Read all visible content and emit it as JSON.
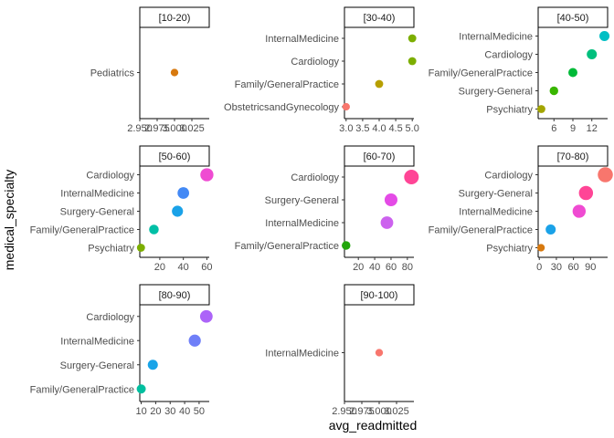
{
  "chart_data": {
    "type": "scatter",
    "xlabel": "avg_readmitted",
    "ylabel": "medical_specialty",
    "grid": false,
    "legend": "none",
    "panels": [
      {
        "label": "[10-20)",
        "xlim": [
          2.95,
          3.05
        ],
        "xticks": [
          2.95,
          2.975,
          3.0,
          3.025
        ],
        "xtick_labels": [
          "2.950",
          "2.975",
          "3.000",
          "3.025"
        ],
        "categories": [
          "Pediatrics"
        ],
        "points": [
          {
            "category": "Pediatrics",
            "value": 3.0,
            "color": "#D7790F",
            "size": 0.3
          }
        ]
      },
      {
        "label": "[30-40)",
        "xlim": [
          2.95,
          5.05
        ],
        "xticks": [
          3.0,
          3.5,
          4.0,
          4.5,
          5.0
        ],
        "xtick_labels": [
          "3.0",
          "3.5",
          "4.0",
          "4.5",
          "5.0"
        ],
        "categories": [
          "ObstetricsandGynecology",
          "Family/GeneralPractice",
          "Cardiology",
          "InternalMedicine"
        ],
        "points": [
          {
            "category": "ObstetricsandGynecology",
            "value": 3.0,
            "color": "#F8766D",
            "size": 0.3
          },
          {
            "category": "Family/GeneralPractice",
            "value": 4.0,
            "color": "#B79F00",
            "size": 0.35
          },
          {
            "category": "Cardiology",
            "value": 5.0,
            "color": "#7CAE00",
            "size": 0.35
          },
          {
            "category": "InternalMedicine",
            "value": 5.0,
            "color": "#7CAE00",
            "size": 0.35
          }
        ]
      },
      {
        "label": "[40-50)",
        "xlim": [
          3.5,
          14.5
        ],
        "xticks": [
          6,
          9,
          12
        ],
        "xtick_labels": [
          "6",
          "9",
          "12"
        ],
        "categories": [
          "Psychiatry",
          "Surgery-General",
          "Family/GeneralPractice",
          "Cardiology",
          "InternalMedicine"
        ],
        "points": [
          {
            "category": "Psychiatry",
            "value": 4.0,
            "color": "#A3A500",
            "size": 0.35
          },
          {
            "category": "Surgery-General",
            "value": 6.0,
            "color": "#39B600",
            "size": 0.4
          },
          {
            "category": "Family/GeneralPractice",
            "value": 9.0,
            "color": "#00BA38",
            "size": 0.45
          },
          {
            "category": "Cardiology",
            "value": 12.0,
            "color": "#00BF7D",
            "size": 0.55
          },
          {
            "category": "InternalMedicine",
            "value": 14.0,
            "color": "#00BFC4",
            "size": 0.55
          }
        ]
      },
      {
        "label": "[50-60)",
        "xlim": [
          3,
          62
        ],
        "xticks": [
          20,
          40,
          60
        ],
        "xtick_labels": [
          "20",
          "40",
          "60"
        ],
        "categories": [
          "Psychiatry",
          "Family/GeneralPractice",
          "Surgery-General",
          "InternalMedicine",
          "Cardiology"
        ],
        "points": [
          {
            "category": "Psychiatry",
            "value": 4,
            "color": "#7CAE00",
            "size": 0.35
          },
          {
            "category": "Family/GeneralPractice",
            "value": 15,
            "color": "#00BFA6",
            "size": 0.5
          },
          {
            "category": "Surgery-General",
            "value": 35,
            "color": "#1AA2E8",
            "size": 0.65
          },
          {
            "category": "InternalMedicine",
            "value": 40,
            "color": "#4389F5",
            "size": 0.7
          },
          {
            "category": "Cardiology",
            "value": 60,
            "color": "#EF4BD2",
            "size": 0.85
          }
        ]
      },
      {
        "label": "[60-70)",
        "xlim": [
          3,
          88
        ],
        "xticks": [
          20,
          40,
          60,
          80
        ],
        "xtick_labels": [
          "20",
          "40",
          "60",
          "80"
        ],
        "categories": [
          "Family/GeneralPractice",
          "InternalMedicine",
          "Surgery-General",
          "Cardiology"
        ],
        "points": [
          {
            "category": "Family/GeneralPractice",
            "value": 5,
            "color": "#22A60B",
            "size": 0.4
          },
          {
            "category": "InternalMedicine",
            "value": 55,
            "color": "#CC62EE",
            "size": 0.8
          },
          {
            "category": "Surgery-General",
            "value": 60,
            "color": "#E44BE6",
            "size": 0.82
          },
          {
            "category": "Cardiology",
            "value": 85,
            "color": "#FF4596",
            "size": 1.0
          }
        ]
      },
      {
        "label": "[70-80)",
        "xlim": [
          -2,
          120
        ],
        "xticks": [
          0,
          30,
          60,
          90
        ],
        "xtick_labels": [
          "0",
          "30",
          "60",
          "90"
        ],
        "categories": [
          "Psychiatry",
          "Family/GeneralPractice",
          "InternalMedicine",
          "Surgery-General",
          "Cardiology"
        ],
        "points": [
          {
            "category": "Psychiatry",
            "value": 3,
            "color": "#D7790F",
            "size": 0.3
          },
          {
            "category": "Family/GeneralPractice",
            "value": 20,
            "color": "#1AA2E8",
            "size": 0.55
          },
          {
            "category": "InternalMedicine",
            "value": 70,
            "color": "#EF4BD2",
            "size": 0.85
          },
          {
            "category": "Surgery-General",
            "value": 82,
            "color": "#FF4596",
            "size": 0.95
          },
          {
            "category": "Cardiology",
            "value": 116,
            "color": "#F8766D",
            "size": 1.05
          }
        ]
      },
      {
        "label": "[80-90)",
        "xlim": [
          9,
          57
        ],
        "xticks": [
          10,
          20,
          30,
          40,
          50
        ],
        "xtick_labels": [
          "10",
          "20",
          "30",
          "40",
          "50"
        ],
        "categories": [
          "Family/GeneralPractice",
          "Surgery-General",
          "InternalMedicine",
          "Cardiology"
        ],
        "points": [
          {
            "category": "Family/GeneralPractice",
            "value": 10,
            "color": "#00BF9F",
            "size": 0.45
          },
          {
            "category": "Surgery-General",
            "value": 18,
            "color": "#19A4E8",
            "size": 0.55
          },
          {
            "category": "InternalMedicine",
            "value": 47,
            "color": "#6F7FF8",
            "size": 0.75
          },
          {
            "category": "Cardiology",
            "value": 55,
            "color": "#AC64F8",
            "size": 0.8
          }
        ]
      },
      {
        "label": "[90-100)",
        "xlim": [
          2.95,
          3.05
        ],
        "xticks": [
          2.95,
          2.975,
          3.0,
          3.025
        ],
        "xtick_labels": [
          "2.950",
          "2.975",
          "3.000",
          "3.025"
        ],
        "categories": [
          "InternalMedicine"
        ],
        "points": [
          {
            "category": "InternalMedicine",
            "value": 3.0,
            "color": "#F8766D",
            "size": 0.3
          }
        ]
      }
    ]
  }
}
